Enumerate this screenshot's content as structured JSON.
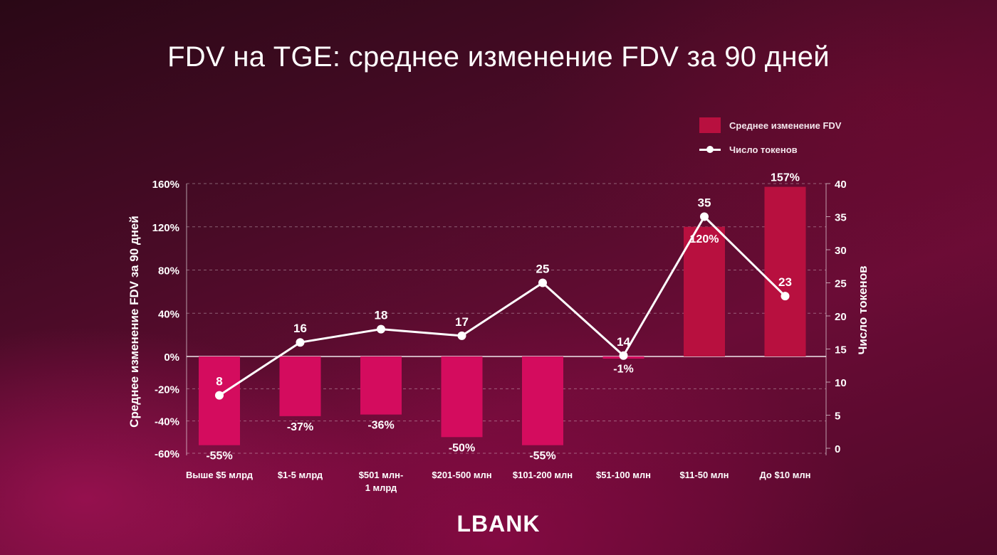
{
  "title": "FDV на TGE: среднее изменение FDV за 90 дней",
  "logo": "LBANK",
  "colors": {
    "bar_positive": "#b8103f",
    "bar_negative": "#d40c5e",
    "line": "#ffffff",
    "grid": "rgba(255,255,255,0.35)"
  },
  "chart_data": {
    "type": "bar",
    "categories": [
      [
        "Выше $5 млрд"
      ],
      [
        "$1-5 млрд"
      ],
      [
        "$501 млн-",
        "1 млрд"
      ],
      [
        "$201-500 млн"
      ],
      [
        "$101-200 млн"
      ],
      [
        "$51-100 млн"
      ],
      [
        "$11-50 млн"
      ],
      [
        "До $10 млн"
      ]
    ],
    "series": [
      {
        "name": "Среднее изменение FDV",
        "type": "bar",
        "axis": "left",
        "values": [
          -55,
          -37,
          -36,
          -50,
          -55,
          -1,
          120,
          157
        ],
        "labels": [
          "-55%",
          "-37%",
          "-36%",
          "-50%",
          "-55%",
          "-1%",
          "120%",
          "157%"
        ]
      },
      {
        "name": "Число токенов",
        "type": "line",
        "axis": "right",
        "values": [
          8,
          16,
          18,
          17,
          25,
          14,
          35,
          23
        ]
      }
    ],
    "ylabel_left": "Среднее изменение FDV за 90 дней",
    "ylabel_right": "Число токенов",
    "yticks_left": [
      "160%",
      "120%",
      "80%",
      "40%",
      "0%",
      "-20%",
      "-40%",
      "-60%"
    ],
    "yticks_right": [
      "40",
      "35",
      "30",
      "25",
      "20",
      "15",
      "10",
      "5",
      "0"
    ],
    "ylim_right": [
      0,
      40
    ],
    "grid": true,
    "legend_position": "top-right"
  }
}
